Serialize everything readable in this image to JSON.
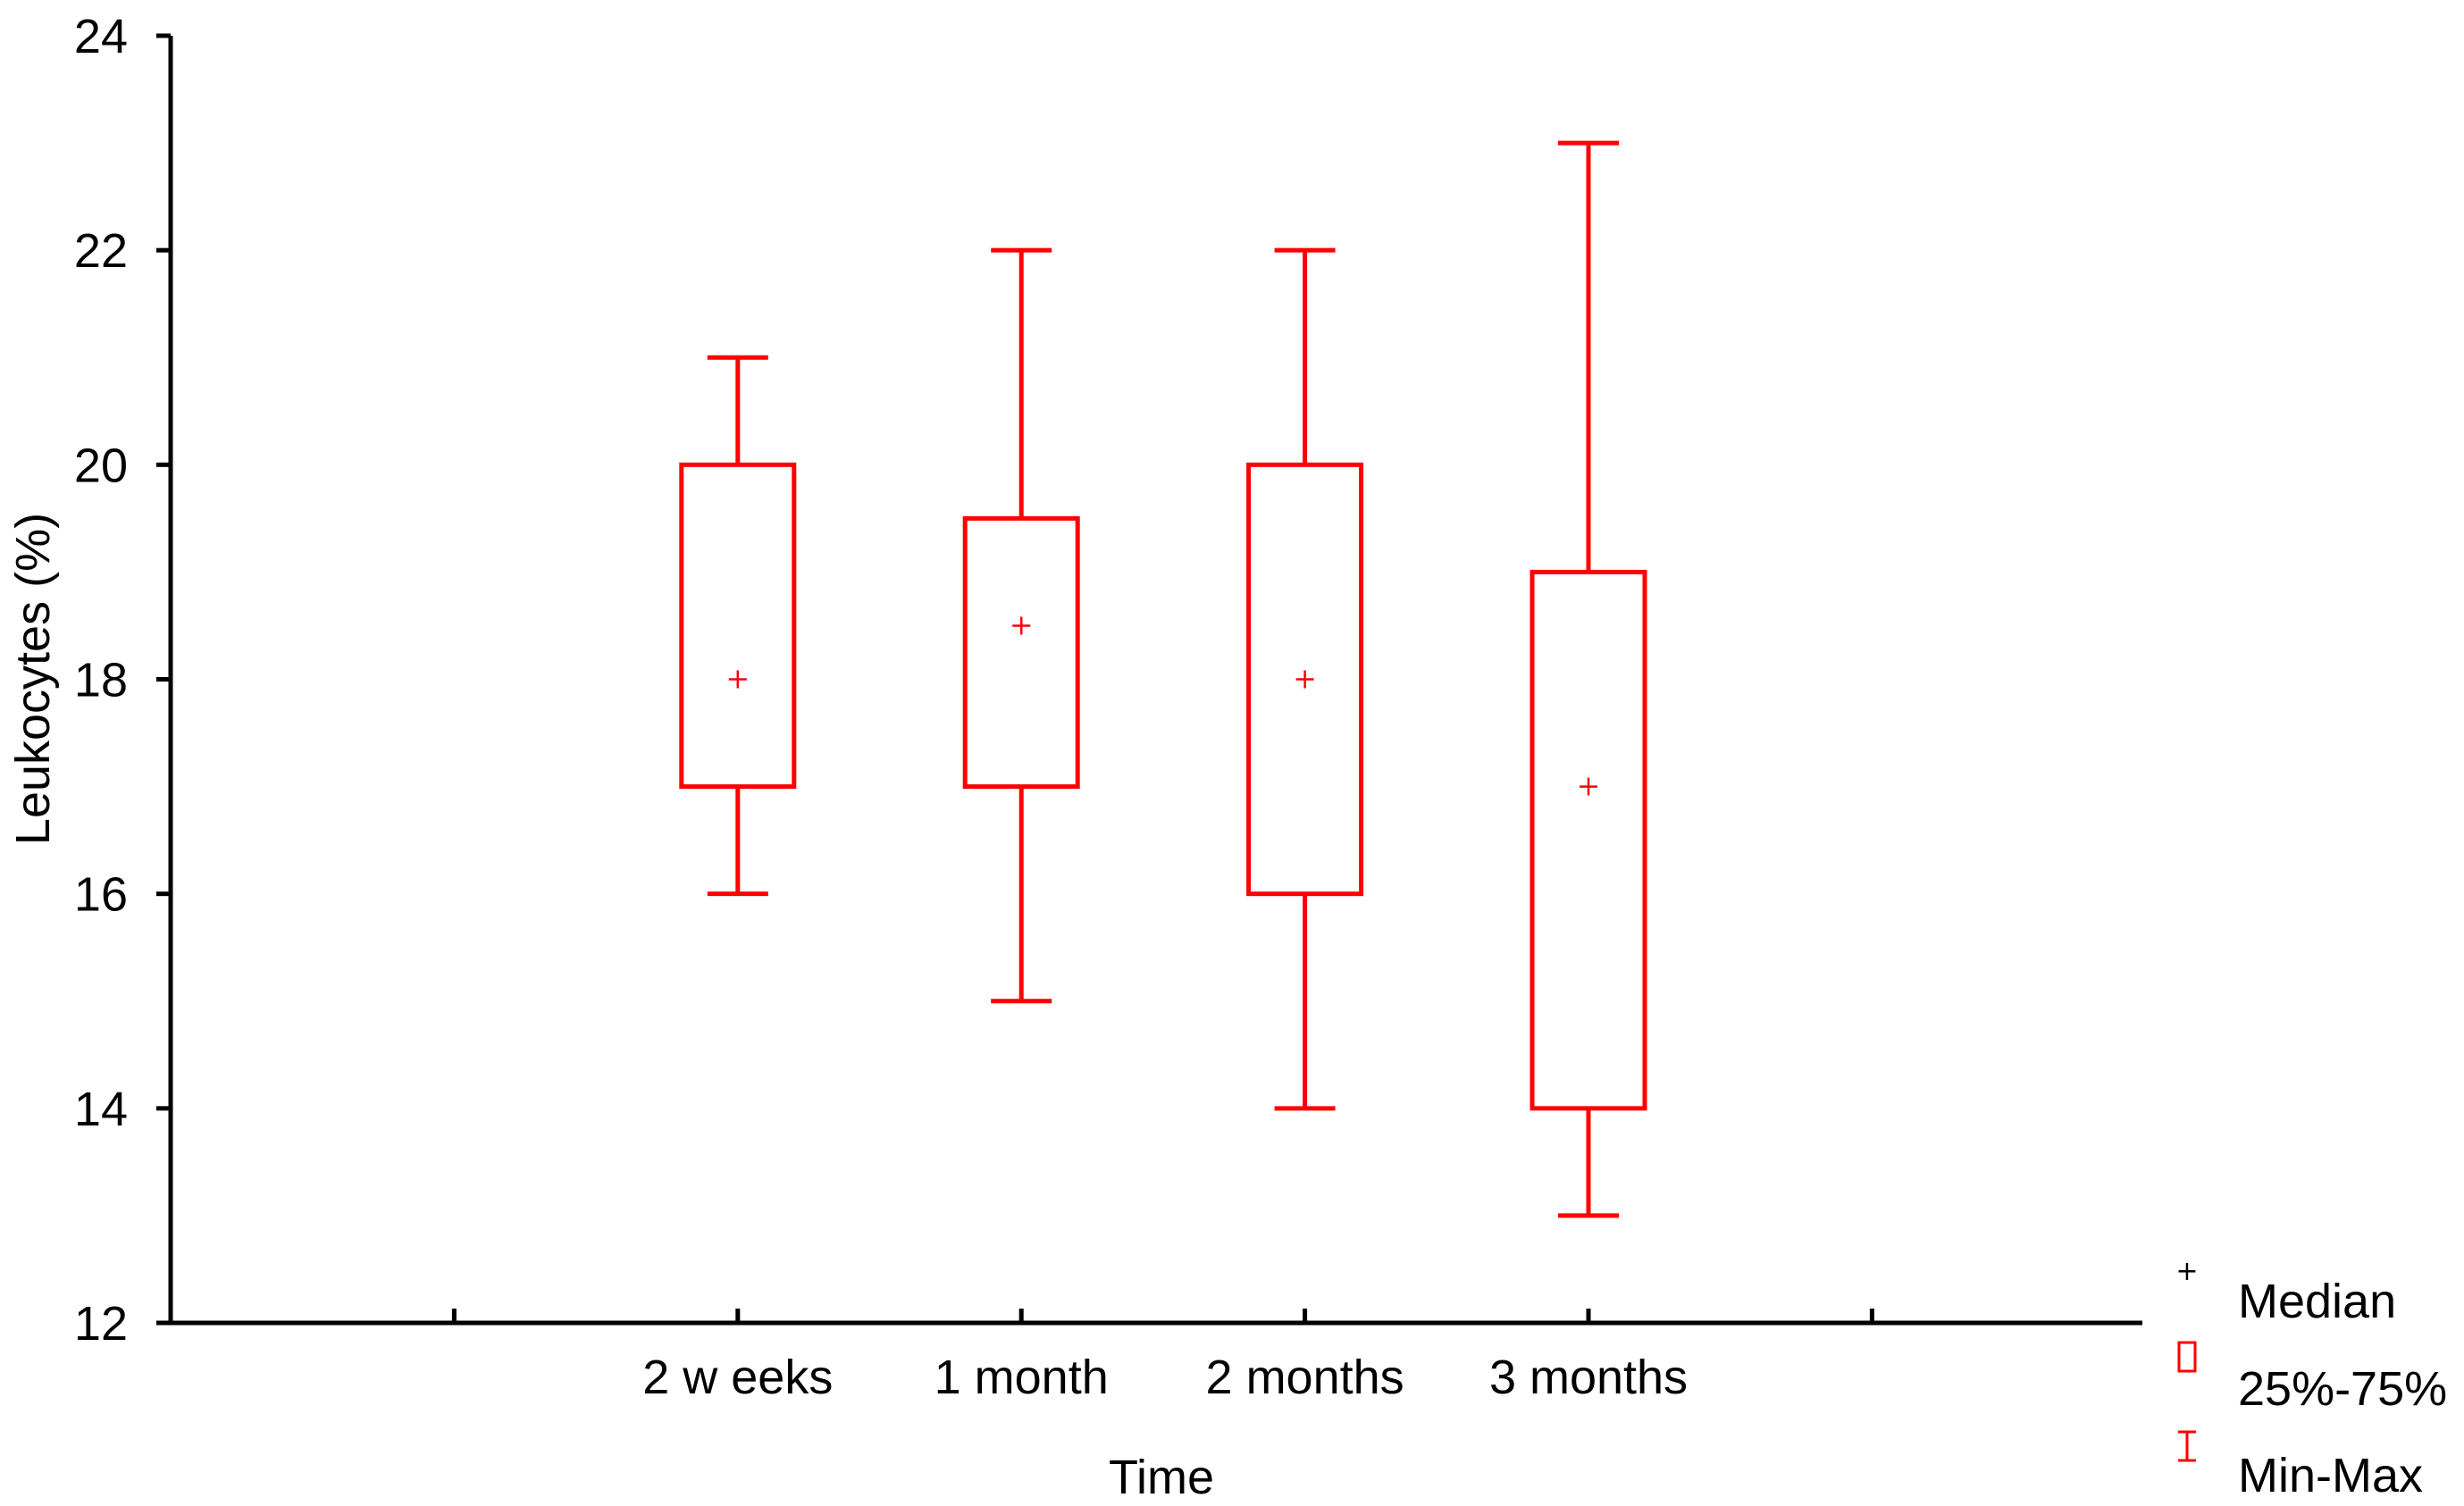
{
  "chart_data": {
    "type": "boxplot",
    "title": "",
    "xlabel": "Time",
    "ylabel": "Leukocytes (%)",
    "ylim": [
      12,
      24
    ],
    "yticks": [
      12,
      14,
      16,
      18,
      20,
      22,
      24
    ],
    "categories": [
      "2 w eeks",
      "1 month",
      "2 months",
      "3 months"
    ],
    "boxes": [
      {
        "min": 16,
        "q1": 17,
        "median": 18,
        "q3": 20,
        "max": 21
      },
      {
        "min": 15,
        "q1": 17,
        "median": 18.5,
        "q3": 19.5,
        "max": 22
      },
      {
        "min": 14,
        "q1": 16,
        "median": 18,
        "q3": 20,
        "max": 22
      },
      {
        "min": 13,
        "q1": 14,
        "median": 17,
        "q3": 19,
        "max": 23
      }
    ],
    "legend": {
      "position": "bottom-right",
      "items": [
        {
          "label": "Median",
          "symbol": "plus-icon",
          "color": "#000000"
        },
        {
          "label": "25%-75%",
          "symbol": "box-icon",
          "color": "#ff0000"
        },
        {
          "label": "Min-Max",
          "symbol": "whisker-icon",
          "color": "#ff0000"
        }
      ]
    },
    "box_color": "#ff0000",
    "axis_color": "#000000",
    "grid": false
  }
}
